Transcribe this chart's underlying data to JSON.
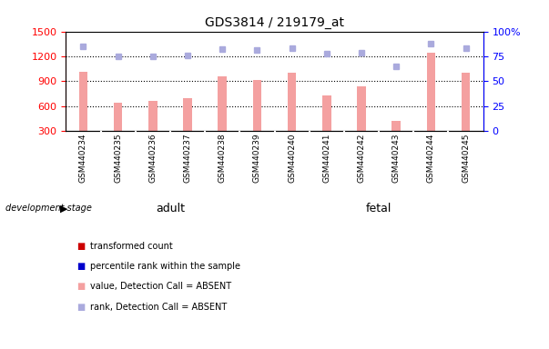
{
  "title": "GDS3814 / 219179_at",
  "samples": [
    "GSM440234",
    "GSM440235",
    "GSM440236",
    "GSM440237",
    "GSM440238",
    "GSM440239",
    "GSM440240",
    "GSM440241",
    "GSM440242",
    "GSM440243",
    "GSM440244",
    "GSM440245"
  ],
  "bar_values": [
    1010,
    645,
    660,
    700,
    960,
    920,
    1000,
    730,
    840,
    420,
    1240,
    1000
  ],
  "rank_values": [
    85,
    75,
    75,
    76,
    82,
    81,
    83,
    78,
    79,
    65,
    88,
    83
  ],
  "adult_count": 6,
  "fetal_count": 6,
  "bar_color": "#f4a0a0",
  "rank_color": "#aaaadd",
  "ylim_left": [
    300,
    1500
  ],
  "ylim_right": [
    0,
    100
  ],
  "yticks_left": [
    300,
    600,
    900,
    1200,
    1500
  ],
  "yticks_right": [
    0,
    25,
    50,
    75,
    100
  ],
  "grid_values": [
    600,
    900,
    1200
  ],
  "adult_color": "#90ee90",
  "fetal_color": "#55ee55",
  "bg_color": "#ffffff",
  "tick_area_color": "#cccccc",
  "legend_items": [
    {
      "label": "transformed count",
      "color": "#cc0000"
    },
    {
      "label": "percentile rank within the sample",
      "color": "#0000cc"
    },
    {
      "label": "value, Detection Call = ABSENT",
      "color": "#f4a0a0"
    },
    {
      "label": "rank, Detection Call = ABSENT",
      "color": "#aaaadd"
    }
  ]
}
